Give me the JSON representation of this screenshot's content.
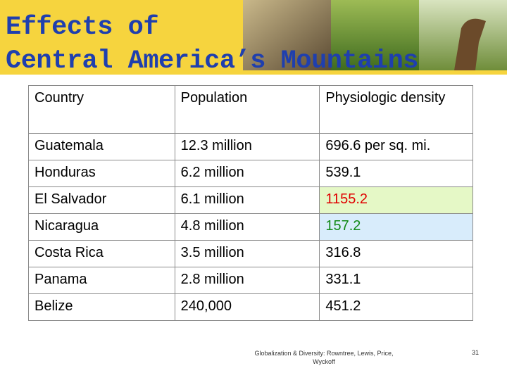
{
  "header": {
    "title_lines": [
      "Effects of",
      "Central America’s Mountains"
    ]
  },
  "table": {
    "columns": [
      "Country",
      "Population",
      "Physiologic density"
    ],
    "rows": [
      [
        "Guatemala",
        "12.3 million",
        "696.6 per sq. mi."
      ],
      [
        "Honduras",
        "6.2 million",
        "539.1"
      ],
      [
        "El Salvador",
        "6.1 million",
        "1155.2"
      ],
      [
        "Nicaragua",
        "4.8 million",
        "157.2"
      ],
      [
        "Costa Rica",
        "3.5 million",
        "316.8"
      ],
      [
        "Panama",
        "2.8 million",
        "331.1"
      ],
      [
        "Belize",
        "240,000",
        "451.2"
      ]
    ]
  },
  "footer": {
    "credit": "Globalization & Diversity: Rowntree, Lewis, Price, Wyckoff",
    "page": "31"
  }
}
